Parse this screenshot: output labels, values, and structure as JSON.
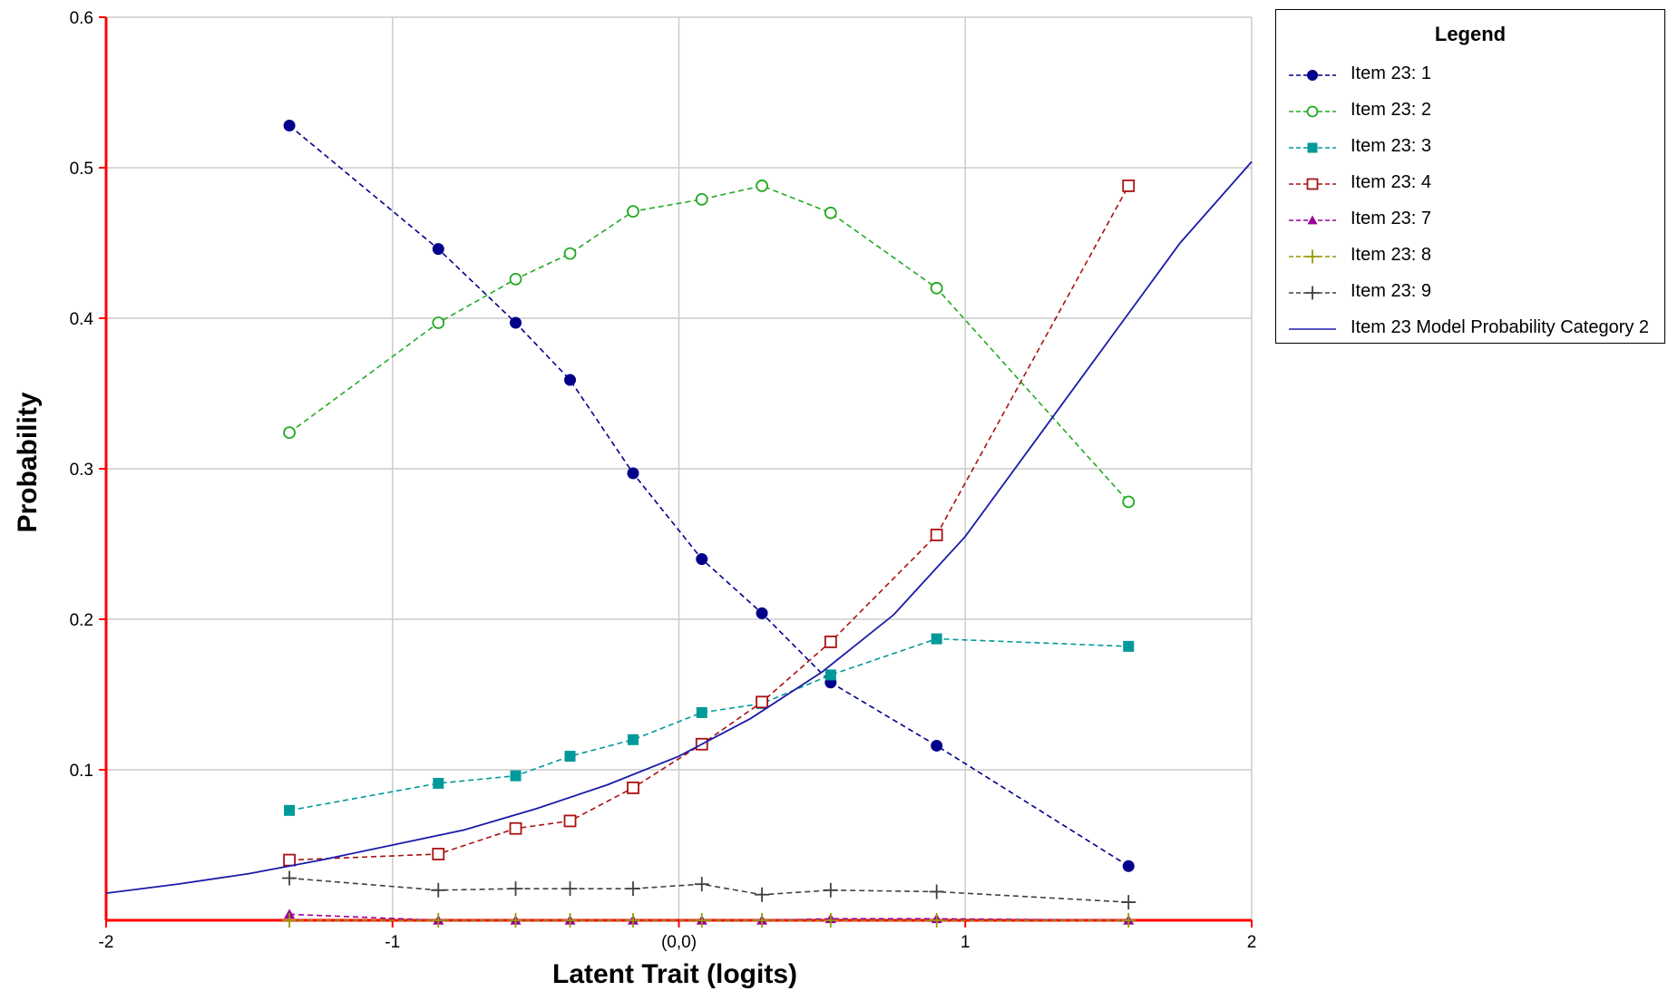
{
  "chart_data": {
    "type": "line",
    "title": "",
    "xlabel": "Latent Trait (logits)",
    "ylabel": "Probability",
    "xlim": [
      -2,
      2
    ],
    "ylim": [
      0,
      0.6
    ],
    "x_ticks": [
      "-2",
      "-1",
      "(0,0)",
      "1",
      "2"
    ],
    "y_ticks": [
      "0.1",
      "0.2",
      "0.3",
      "0.4",
      "0.5",
      "0.6"
    ],
    "grid": true,
    "legend_title": "Legend",
    "legend_position": "right",
    "x": [
      -1.36,
      -0.84,
      -0.57,
      -0.38,
      -0.16,
      0.08,
      0.29,
      0.53,
      0.9,
      1.57
    ],
    "series": [
      {
        "name": "Item 23: 1",
        "color": "#00008b",
        "marker": "filled-circle",
        "line": "dashed",
        "values": [
          0.528,
          0.446,
          0.397,
          0.359,
          0.297,
          0.24,
          0.204,
          0.158,
          0.116,
          0.036
        ]
      },
      {
        "name": "Item 23: 2",
        "color": "#22aa22",
        "marker": "open-circle",
        "line": "dashed",
        "values": [
          0.324,
          0.397,
          0.426,
          0.443,
          0.471,
          0.479,
          0.488,
          0.47,
          0.42,
          0.278
        ]
      },
      {
        "name": "Item 23: 3",
        "color": "#009999",
        "marker": "filled-square",
        "line": "dashed",
        "values": [
          0.073,
          0.091,
          0.096,
          0.109,
          0.12,
          0.138,
          0.144,
          0.163,
          0.187,
          0.182
        ]
      },
      {
        "name": "Item 23: 4",
        "color": "#aa1111",
        "marker": "open-square",
        "line": "dashed",
        "values": [
          0.04,
          0.044,
          0.061,
          0.066,
          0.088,
          0.117,
          0.145,
          0.185,
          0.256,
          0.488
        ]
      },
      {
        "name": "Item 23: 7",
        "color": "#990099",
        "marker": "triangle",
        "line": "dashed",
        "values": [
          0.004,
          0.0,
          0.0,
          0.0,
          0.0,
          0.0,
          0.0,
          0.001,
          0.001,
          0.0
        ]
      },
      {
        "name": "Item 23: 8",
        "color": "#999900",
        "marker": "plus",
        "line": "dashed",
        "values": [
          0.0,
          0.0,
          0.0,
          0.0,
          0.0,
          0.0,
          0.0,
          0.0,
          0.0,
          0.0
        ]
      },
      {
        "name": "Item 23: 9",
        "color": "#404040",
        "marker": "plus",
        "line": "dashed",
        "values": [
          0.028,
          0.02,
          0.021,
          0.021,
          0.021,
          0.024,
          0.017,
          0.02,
          0.019,
          0.012
        ]
      }
    ],
    "model_curve": {
      "name": "Item 23 Model Probability Category 2",
      "color": "#1a1aaa",
      "line": "solid",
      "x": [
        -2,
        -1.75,
        -1.5,
        -1.25,
        -1.0,
        -0.75,
        -0.5,
        -0.25,
        0.0,
        0.25,
        0.5,
        0.75,
        1.0,
        1.25,
        1.5,
        1.75,
        2.0
      ],
      "values": [
        0.018,
        0.024,
        0.031,
        0.04,
        0.05,
        0.06,
        0.074,
        0.09,
        0.109,
        0.134,
        0.165,
        0.203,
        0.255,
        0.32,
        0.385,
        0.45,
        0.504
      ]
    }
  }
}
